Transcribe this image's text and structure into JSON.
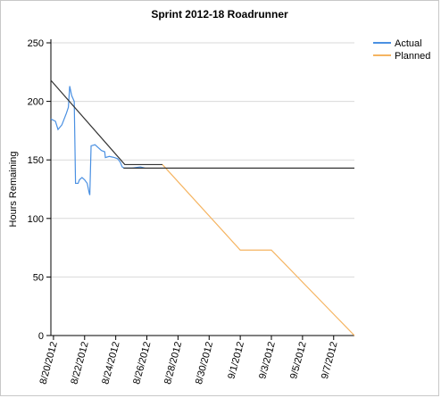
{
  "chart_data": {
    "type": "line",
    "title": "Sprint 2012-18 Roadrunner",
    "y_label": "Hours Remaining",
    "ylim": [
      0,
      250
    ],
    "yticks": [
      0,
      50,
      100,
      150,
      200,
      250
    ],
    "grid": true,
    "legend": "top-right",
    "xlim": [
      "2012-08-19T20:00",
      "2012-09-08T08:00"
    ],
    "xticks": [
      {
        "value": "2012-08-20T00:00",
        "label": "8/20/2012"
      },
      {
        "value": "2012-08-22T00:00",
        "label": "8/22/2012"
      },
      {
        "value": "2012-08-24T00:00",
        "label": "8/24/2012"
      },
      {
        "value": "2012-08-26T00:00",
        "label": "8/26/2012"
      },
      {
        "value": "2012-08-28T00:00",
        "label": "8/28/2012"
      },
      {
        "value": "2012-08-30T00:00",
        "label": "8/30/2012"
      },
      {
        "value": "2012-09-01T00:00",
        "label": "9/1/2012"
      },
      {
        "value": "2012-09-03T00:00",
        "label": "9/3/2012"
      },
      {
        "value": "2012-09-05T00:00",
        "label": "9/5/2012"
      },
      {
        "value": "2012-09-07T00:00",
        "label": "9/7/2012"
      }
    ],
    "series": [
      {
        "name": "Actual",
        "color": "#4a90e2",
        "x": [
          "2012-08-19T20:00",
          "2012-08-20T03:00",
          "2012-08-20T07:00",
          "2012-08-20T13:00",
          "2012-08-20T20:00",
          "2012-08-20T23:00",
          "2012-08-21T01:00",
          "2012-08-21T04:00",
          "2012-08-21T08:00",
          "2012-08-21T10:00",
          "2012-08-21T14:00",
          "2012-08-21T16:00",
          "2012-08-21T20:00",
          "2012-08-22T00:00",
          "2012-08-22T04:00",
          "2012-08-22T07:00",
          "2012-08-22T08:00",
          "2012-08-22T10:00",
          "2012-08-22T16:00",
          "2012-08-22T22:00",
          "2012-08-23T02:00",
          "2012-08-23T07:00",
          "2012-08-23T08:00",
          "2012-08-23T14:00",
          "2012-08-23T22:00",
          "2012-08-24T03:00",
          "2012-08-24T07:00",
          "2012-08-24T10:00",
          "2012-08-24T13:00",
          "2012-08-25T01:00",
          "2012-08-25T14:00",
          "2012-08-25T21:00"
        ],
        "values": [
          185,
          183,
          176,
          180,
          190,
          195,
          213,
          205,
          200,
          130,
          130,
          133,
          135,
          133,
          130,
          122,
          120,
          162,
          163,
          160,
          158,
          157,
          152,
          153,
          152,
          151,
          148,
          144,
          143,
          143,
          144,
          143
        ]
      },
      {
        "name": "Planned",
        "color": "#f5b461",
        "x": [
          "2012-08-27T00:00",
          "2012-09-01T00:00",
          "2012-09-03T00:00",
          "2012-09-08T08:00"
        ],
        "values": [
          146,
          73,
          73,
          0
        ]
      },
      {
        "color": "#333333",
        "x": [
          "2012-08-19T20:00",
          "2012-08-24T14:00",
          "2012-08-27T00:00"
        ],
        "values": [
          218,
          146,
          146
        ]
      },
      {
        "color": "#333333",
        "x": [
          "2012-08-24T12:00",
          "2012-09-08T08:00"
        ],
        "values": [
          143,
          143
        ]
      }
    ]
  }
}
